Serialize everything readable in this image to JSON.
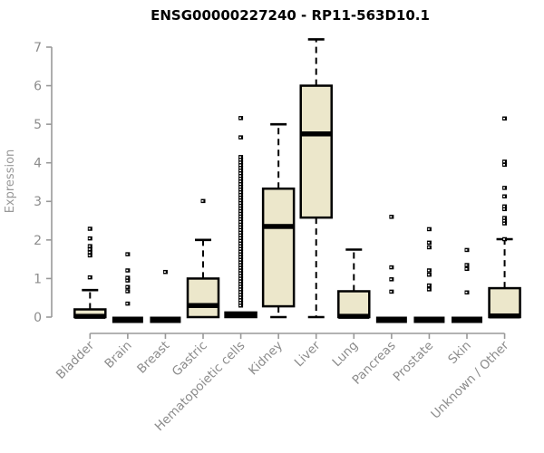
{
  "title": "ENSG00000227240 - RP11-563D10.1",
  "ylabel": "Expression",
  "chart_data": {
    "type": "boxplot",
    "title": "ENSG00000227240 - RP11-563D10.1",
    "xlabel": "",
    "ylabel": "Expression",
    "ylim": [
      0,
      7
    ],
    "yticks": [
      0,
      1,
      2,
      3,
      4,
      5,
      6,
      7
    ],
    "grid": false,
    "legend": "none",
    "categories": [
      "Bladder",
      "Brain",
      "Breast",
      "Gastric",
      "Hematopoietic cells",
      "Kidney",
      "Liver",
      "Lung",
      "Pancreas",
      "Prostate",
      "Skin",
      "Unknown / Other"
    ],
    "series": [
      {
        "name": "Bladder",
        "whisker_low": 0,
        "q1": 0,
        "median": 0.02,
        "q3": 0.2,
        "whisker_high": 0.7,
        "outliers": [
          1.03,
          1.6,
          1.68,
          1.76,
          1.84,
          2.04,
          2.29
        ]
      },
      {
        "name": "Brain",
        "whisker_low": 0,
        "q1": 0,
        "median": 0,
        "q3": 0,
        "whisker_high": 0,
        "outliers": [
          0.35,
          0.67,
          0.78,
          0.95,
          1.02,
          1.21,
          1.63
        ]
      },
      {
        "name": "Breast",
        "whisker_low": 0,
        "q1": 0,
        "median": 0,
        "q3": 0,
        "whisker_high": 0,
        "outliers": [
          1.17
        ]
      },
      {
        "name": "Gastric",
        "whisker_low": 0,
        "q1": 0,
        "median": 0.3,
        "q3": 1.0,
        "whisker_high": 2.0,
        "outliers": [
          3.01
        ]
      },
      {
        "name": "Hematopoietic cells",
        "whisker_low": 0,
        "q1": 0,
        "median": 0.05,
        "q3": 0.12,
        "whisker_high": 0.12,
        "outliers": [
          0.3,
          0.37,
          0.44,
          0.51,
          0.58,
          0.65,
          0.72,
          0.79,
          0.86,
          0.93,
          1.0,
          1.07,
          1.14,
          1.21,
          1.28,
          1.35,
          1.42,
          1.49,
          1.56,
          1.63,
          1.7,
          1.77,
          1.84,
          1.91,
          1.98,
          2.05,
          2.12,
          2.19,
          2.26,
          2.33,
          2.4,
          2.47,
          2.54,
          2.61,
          2.68,
          2.75,
          2.82,
          2.89,
          2.96,
          3.03,
          3.1,
          3.17,
          3.24,
          3.31,
          3.38,
          3.45,
          3.52,
          3.59,
          3.66,
          3.73,
          3.8,
          3.87,
          3.94,
          4.01,
          4.08,
          4.15,
          4.66,
          5.16
        ]
      },
      {
        "name": "Kidney",
        "whisker_low": 0,
        "q1": 0.28,
        "median": 2.35,
        "q3": 3.33,
        "whisker_high": 5.0,
        "outliers": []
      },
      {
        "name": "Liver",
        "whisker_low": 0,
        "q1": 2.58,
        "median": 4.75,
        "q3": 6.0,
        "whisker_high": 7.2,
        "outliers": []
      },
      {
        "name": "Lung",
        "whisker_low": 0,
        "q1": 0,
        "median": 0.02,
        "q3": 0.67,
        "whisker_high": 1.75,
        "outliers": []
      },
      {
        "name": "Pancreas",
        "whisker_low": 0,
        "q1": 0,
        "median": 0,
        "q3": 0,
        "whisker_high": 0,
        "outliers": [
          0.66,
          0.98,
          1.29,
          2.6
        ]
      },
      {
        "name": "Prostate",
        "whisker_low": 0,
        "q1": 0,
        "median": 0,
        "q3": 0,
        "whisker_high": 0,
        "outliers": [
          0.72,
          0.82,
          1.1,
          1.21,
          1.81,
          1.93,
          2.28
        ]
      },
      {
        "name": "Skin",
        "whisker_low": 0,
        "q1": 0,
        "median": 0,
        "q3": 0,
        "whisker_high": 0,
        "outliers": [
          0.64,
          1.25,
          1.35,
          1.74
        ]
      },
      {
        "name": "Unknown / Other",
        "whisker_low": 0,
        "q1": 0,
        "median": 0.03,
        "q3": 0.75,
        "whisker_high": 2.02,
        "outliers": [
          2.02,
          2.43,
          2.5,
          2.57,
          2.8,
          2.87,
          3.13,
          3.35,
          3.95,
          4.03,
          5.15
        ]
      }
    ],
    "colors": {
      "box_fill": "#ece7cb",
      "box_border": "#000000",
      "median": "#000000",
      "whisker": "#000000",
      "outlier": "#000000",
      "axis": "#999999",
      "tick_label": "#8c8c8c",
      "title": "#000000",
      "background": "#ffffff"
    }
  }
}
